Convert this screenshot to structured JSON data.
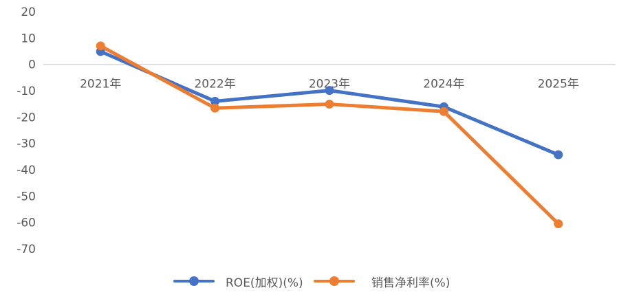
{
  "chart_data": {
    "type": "line",
    "title": "",
    "xlabel": "",
    "ylabel": "",
    "categories": [
      "2021年",
      "2022年",
      "2023年",
      "2024年",
      "2025年"
    ],
    "series": [
      {
        "name": "ROE(加权)(%)",
        "color": "#4472C4",
        "values": [
          4.9,
          -14.0,
          -9.9,
          -16.1,
          -34.3
        ]
      },
      {
        "name": "销售净利率(%)",
        "color": "#ED7D31",
        "values": [
          7.0,
          -16.6,
          -15.1,
          -17.9,
          -60.5
        ]
      }
    ],
    "ylim": [
      -70,
      20
    ],
    "yticks": [
      20,
      10,
      0,
      -10,
      -20,
      -30,
      -40,
      -50,
      -60,
      -70
    ],
    "ytick_labels": [
      "20",
      "10",
      "0",
      "-10",
      "-20",
      "-30",
      "-40",
      "-50",
      "-60",
      "-70"
    ],
    "grid": false,
    "zero_line": true,
    "legend_position": "bottom",
    "category_labels_at_zero_line": true
  },
  "legend": {
    "items": [
      {
        "label": "ROE(加权)(%)",
        "color": "#4472C4"
      },
      {
        "label": "销售净利率(%)",
        "color": "#ED7D31"
      }
    ]
  }
}
